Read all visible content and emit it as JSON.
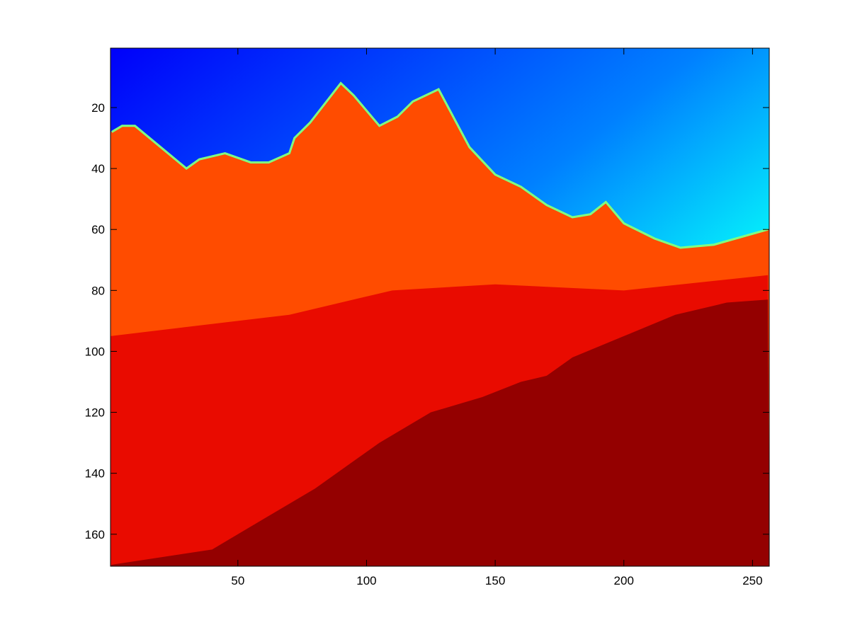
{
  "chart_data": {
    "type": "heatmap",
    "title": "",
    "xlabel": "",
    "ylabel": "",
    "colormap": "jet",
    "xlim": [
      0.5,
      256.5
    ],
    "ylim": [
      170.5,
      0.5
    ],
    "y_axis_direction": "reversed",
    "grid": false,
    "colorbar": false,
    "x_ticks": [
      50,
      100,
      150,
      200,
      250
    ],
    "y_ticks": [
      20,
      40,
      60,
      80,
      100,
      120,
      140,
      160
    ],
    "x_tick_labels": [
      "50",
      "100",
      "150",
      "200",
      "250"
    ],
    "y_tick_labels": [
      "20",
      "40",
      "60",
      "80",
      "100",
      "120",
      "140",
      "160"
    ],
    "image_size": {
      "columns": 256,
      "rows": 170
    },
    "regions": [
      {
        "name": "sky-dark-blue",
        "color_value": 0.12
      },
      {
        "name": "sky-blue",
        "color_value": 0.25
      },
      {
        "name": "sky-cyan",
        "color_value": 0.38
      },
      {
        "name": "sky-green-yellow",
        "color_value": 0.6
      },
      {
        "name": "mountain-orange",
        "color_value": 0.8
      },
      {
        "name": "slope-red",
        "color_value": 0.9
      },
      {
        "name": "valley-dark-red",
        "color_value": 0.98
      }
    ],
    "ridge_line_row_by_column": [
      [
        1,
        28
      ],
      [
        5,
        26
      ],
      [
        10,
        26
      ],
      [
        20,
        33
      ],
      [
        30,
        40
      ],
      [
        35,
        37
      ],
      [
        45,
        35
      ],
      [
        55,
        38
      ],
      [
        62,
        38
      ],
      [
        70,
        35
      ],
      [
        72,
        30
      ],
      [
        78,
        25
      ],
      [
        90,
        12
      ],
      [
        95,
        16
      ],
      [
        105,
        26
      ],
      [
        112,
        23
      ],
      [
        118,
        18
      ],
      [
        128,
        14
      ],
      [
        140,
        33
      ],
      [
        150,
        42
      ],
      [
        160,
        46
      ],
      [
        170,
        52
      ],
      [
        180,
        56
      ],
      [
        187,
        55
      ],
      [
        193,
        51
      ],
      [
        200,
        58
      ],
      [
        212,
        63
      ],
      [
        222,
        66
      ],
      [
        235,
        65
      ],
      [
        256,
        60
      ]
    ],
    "dark_red_boundary_row_by_column": [
      [
        1,
        170
      ],
      [
        40,
        165
      ],
      [
        80,
        145
      ],
      [
        105,
        130
      ],
      [
        125,
        120
      ],
      [
        145,
        115
      ],
      [
        160,
        110
      ],
      [
        170,
        108
      ],
      [
        180,
        102
      ],
      [
        200,
        95
      ],
      [
        220,
        88
      ],
      [
        240,
        84
      ],
      [
        256,
        83
      ]
    ]
  }
}
